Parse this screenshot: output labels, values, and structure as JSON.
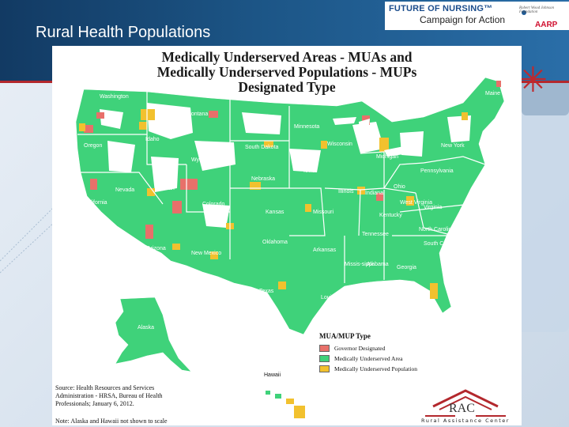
{
  "slide": {
    "title": "Rural Health Populations"
  },
  "logos": {
    "future_of_nursing": "FUTURE OF NURSING™",
    "campaign": "Campaign for Action",
    "rwjf": "Robert Wood Johnson Foundation",
    "aarp": "AARP"
  },
  "map": {
    "title_line1": "Medically Underserved Areas - MUAs and",
    "title_line2": "Medically Underserved Populations - MUPs",
    "title_line3": "Designated Type",
    "legend": {
      "title": "MUA/MUP Type",
      "items": [
        {
          "label": "Governor Designated",
          "color": "#e8706a"
        },
        {
          "label": "Medically Underserved Area",
          "color": "#3fd27a"
        },
        {
          "label": "Medically Underserved Population",
          "color": "#f2c12e"
        }
      ]
    },
    "states": {
      "washington": "Washington",
      "oregon": "Oregon",
      "california": "California",
      "nevada": "Nevada",
      "idaho": "Idaho",
      "montana": "Montana",
      "wyoming": "Wyoming",
      "utah": "Utah",
      "arizona": "Arizona",
      "colorado": "Colorado",
      "new_mexico": "New Mexico",
      "north_dakota": "North Dakota",
      "south_dakota": "South Dakota",
      "nebraska": "Nebraska",
      "kansas": "Kansas",
      "oklahoma": "Oklahoma",
      "texas": "Texas",
      "minnesota": "Minnesota",
      "iowa": "Iowa",
      "missouri": "Missouri",
      "arkansas": "Arkansas",
      "louisiana": "Louisiana",
      "wisconsin": "Wisconsin",
      "illinois": "Illinois",
      "michigan": "Michigan",
      "indiana": "Indiana",
      "ohio": "Ohio",
      "kentucky": "Kentucky",
      "tennessee": "Tennessee",
      "mississippi": "Missis-sippi",
      "alabama": "Alabama",
      "georgia": "Georgia",
      "florida": "Florida",
      "south_carolina": "South Carolina",
      "north_carolina": "North Carolina",
      "virginia": "Virginia",
      "west_virginia": "West Virginia",
      "pennsylvania": "Pennsylvania",
      "new_york": "New York",
      "maine": "Maine",
      "alaska": "Alaska",
      "hawaii": "Hawaii"
    },
    "source_line1": "Source: Health Resources and Services",
    "source_line2": "Administration - HRSA, Bureau of Health",
    "source_line3": "Professionals; January 6, 2012.",
    "scale_note": "Note: Alaska and Hawaii not shown to scale"
  },
  "rac": {
    "mark": "RAC",
    "name": "Rural Assistance Center"
  },
  "colors": {
    "governor": "#e8706a",
    "mua": "#3fd27a",
    "mup": "#f2c12e",
    "border": "#ffffff"
  }
}
